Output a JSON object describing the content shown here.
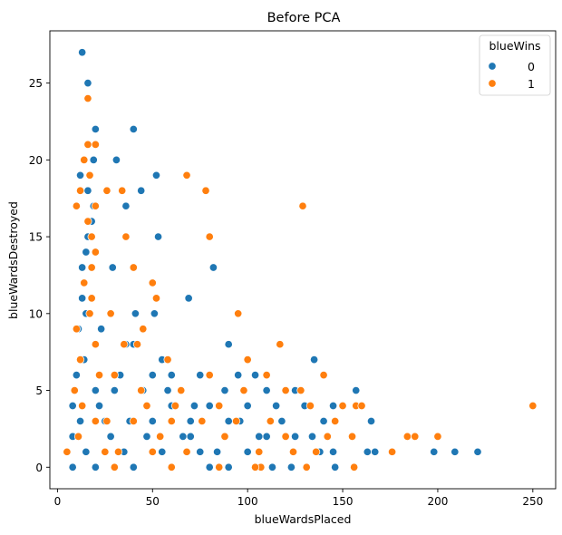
{
  "chart_data": {
    "type": "scatter",
    "title": "Before PCA",
    "xlabel": "blueWardsPlaced",
    "ylabel": "blueWardsDestroyed",
    "xlim": [
      -4,
      262
    ],
    "ylim": [
      -1.4,
      28.4
    ],
    "xticks": [
      0,
      50,
      100,
      150,
      200,
      250
    ],
    "yticks": [
      0,
      5,
      10,
      15,
      20,
      25
    ],
    "grid": false,
    "legend": {
      "title": "blueWins",
      "placement": "top-right"
    },
    "series": [
      {
        "name": "0",
        "color": "#1f77b4",
        "points": [
          [
            13,
            27
          ],
          [
            16,
            25
          ],
          [
            20,
            22
          ],
          [
            40,
            22
          ],
          [
            31,
            20
          ],
          [
            19,
            20
          ],
          [
            52,
            19
          ],
          [
            44,
            18
          ],
          [
            16,
            18
          ],
          [
            12,
            19
          ],
          [
            19,
            17
          ],
          [
            36,
            17
          ],
          [
            18,
            16
          ],
          [
            16,
            15
          ],
          [
            53,
            15
          ],
          [
            15,
            14
          ],
          [
            82,
            13
          ],
          [
            29,
            13
          ],
          [
            13,
            13
          ],
          [
            14,
            12
          ],
          [
            13,
            11
          ],
          [
            69,
            11
          ],
          [
            15,
            10
          ],
          [
            41,
            10
          ],
          [
            51,
            10
          ],
          [
            11,
            9
          ],
          [
            23,
            9
          ],
          [
            90,
            8
          ],
          [
            36,
            8
          ],
          [
            40,
            8
          ],
          [
            55,
            7
          ],
          [
            135,
            7
          ],
          [
            50,
            6
          ],
          [
            60,
            6
          ],
          [
            75,
            6
          ],
          [
            95,
            6
          ],
          [
            104,
            6
          ],
          [
            88,
            5
          ],
          [
            110,
            5
          ],
          [
            125,
            5
          ],
          [
            157,
            5
          ],
          [
            20,
            5
          ],
          [
            30,
            5
          ],
          [
            45,
            5
          ],
          [
            60,
            4
          ],
          [
            80,
            4
          ],
          [
            100,
            4
          ],
          [
            115,
            4
          ],
          [
            130,
            4
          ],
          [
            145,
            4
          ],
          [
            150,
            4
          ],
          [
            165,
            3
          ],
          [
            25,
            3
          ],
          [
            50,
            3
          ],
          [
            70,
            3
          ],
          [
            90,
            3
          ],
          [
            118,
            3
          ],
          [
            140,
            3
          ],
          [
            155,
            2
          ],
          [
            70,
            2
          ],
          [
            110,
            2
          ],
          [
            125,
            2
          ],
          [
            163,
            1
          ],
          [
            167,
            1
          ],
          [
            198,
            1
          ],
          [
            209,
            1
          ],
          [
            221,
            1
          ],
          [
            15,
            1
          ],
          [
            35,
            1
          ],
          [
            55,
            1
          ],
          [
            75,
            1
          ],
          [
            100,
            1
          ],
          [
            145,
            1
          ],
          [
            8,
            0
          ],
          [
            20,
            0
          ],
          [
            40,
            0
          ],
          [
            60,
            0
          ],
          [
            80,
            0
          ],
          [
            90,
            0
          ],
          [
            123,
            0
          ],
          [
            146,
            0
          ],
          [
            8,
            4
          ],
          [
            8,
            2
          ],
          [
            10,
            6
          ],
          [
            12,
            3
          ],
          [
            14,
            7
          ],
          [
            22,
            4
          ],
          [
            28,
            2
          ],
          [
            33,
            6
          ],
          [
            38,
            3
          ],
          [
            47,
            2
          ],
          [
            58,
            5
          ],
          [
            66,
            2
          ],
          [
            72,
            4
          ],
          [
            84,
            1
          ],
          [
            96,
            3
          ],
          [
            106,
            2
          ],
          [
            113,
            0
          ],
          [
            134,
            2
          ],
          [
            138,
            1
          ]
        ]
      },
      {
        "name": "1",
        "color": "#ff7f0e",
        "points": [
          [
            16,
            24
          ],
          [
            16,
            21
          ],
          [
            20,
            21
          ],
          [
            14,
            20
          ],
          [
            68,
            19
          ],
          [
            17,
            19
          ],
          [
            12,
            18
          ],
          [
            26,
            18
          ],
          [
            34,
            18
          ],
          [
            78,
            18
          ],
          [
            10,
            17
          ],
          [
            20,
            17
          ],
          [
            129,
            17
          ],
          [
            16,
            16
          ],
          [
            18,
            15
          ],
          [
            36,
            15
          ],
          [
            80,
            15
          ],
          [
            20,
            14
          ],
          [
            18,
            13
          ],
          [
            40,
            13
          ],
          [
            14,
            12
          ],
          [
            50,
            12
          ],
          [
            18,
            11
          ],
          [
            52,
            11
          ],
          [
            95,
            10
          ],
          [
            17,
            10
          ],
          [
            28,
            10
          ],
          [
            10,
            9
          ],
          [
            45,
            9
          ],
          [
            117,
            8
          ],
          [
            20,
            8
          ],
          [
            35,
            8
          ],
          [
            42,
            8
          ],
          [
            58,
            7
          ],
          [
            100,
            7
          ],
          [
            12,
            7
          ],
          [
            30,
            6
          ],
          [
            80,
            6
          ],
          [
            110,
            6
          ],
          [
            140,
            6
          ],
          [
            65,
            5
          ],
          [
            120,
            5
          ],
          [
            128,
            5
          ],
          [
            150,
            4
          ],
          [
            157,
            4
          ],
          [
            250,
            4
          ],
          [
            47,
            4
          ],
          [
            85,
            4
          ],
          [
            133,
            4
          ],
          [
            20,
            3
          ],
          [
            40,
            3
          ],
          [
            60,
            3
          ],
          [
            94,
            3
          ],
          [
            146,
            3
          ],
          [
            120,
            2
          ],
          [
            155,
            2
          ],
          [
            184,
            2
          ],
          [
            200,
            2
          ],
          [
            5,
            1
          ],
          [
            25,
            1
          ],
          [
            50,
            1
          ],
          [
            106,
            1
          ],
          [
            136,
            1
          ],
          [
            176,
            1
          ],
          [
            30,
            0
          ],
          [
            60,
            0
          ],
          [
            85,
            0
          ],
          [
            107,
            0
          ],
          [
            131,
            0
          ],
          [
            156,
            0
          ],
          [
            9,
            5
          ],
          [
            11,
            2
          ],
          [
            13,
            4
          ],
          [
            22,
            6
          ],
          [
            26,
            3
          ],
          [
            32,
            1
          ],
          [
            44,
            5
          ],
          [
            54,
            2
          ],
          [
            62,
            4
          ],
          [
            68,
            1
          ],
          [
            76,
            3
          ],
          [
            88,
            2
          ],
          [
            98,
            5
          ],
          [
            104,
            0
          ],
          [
            112,
            3
          ],
          [
            124,
            1
          ],
          [
            142,
            2
          ],
          [
            160,
            4
          ],
          [
            188,
            2
          ]
        ]
      }
    ]
  }
}
